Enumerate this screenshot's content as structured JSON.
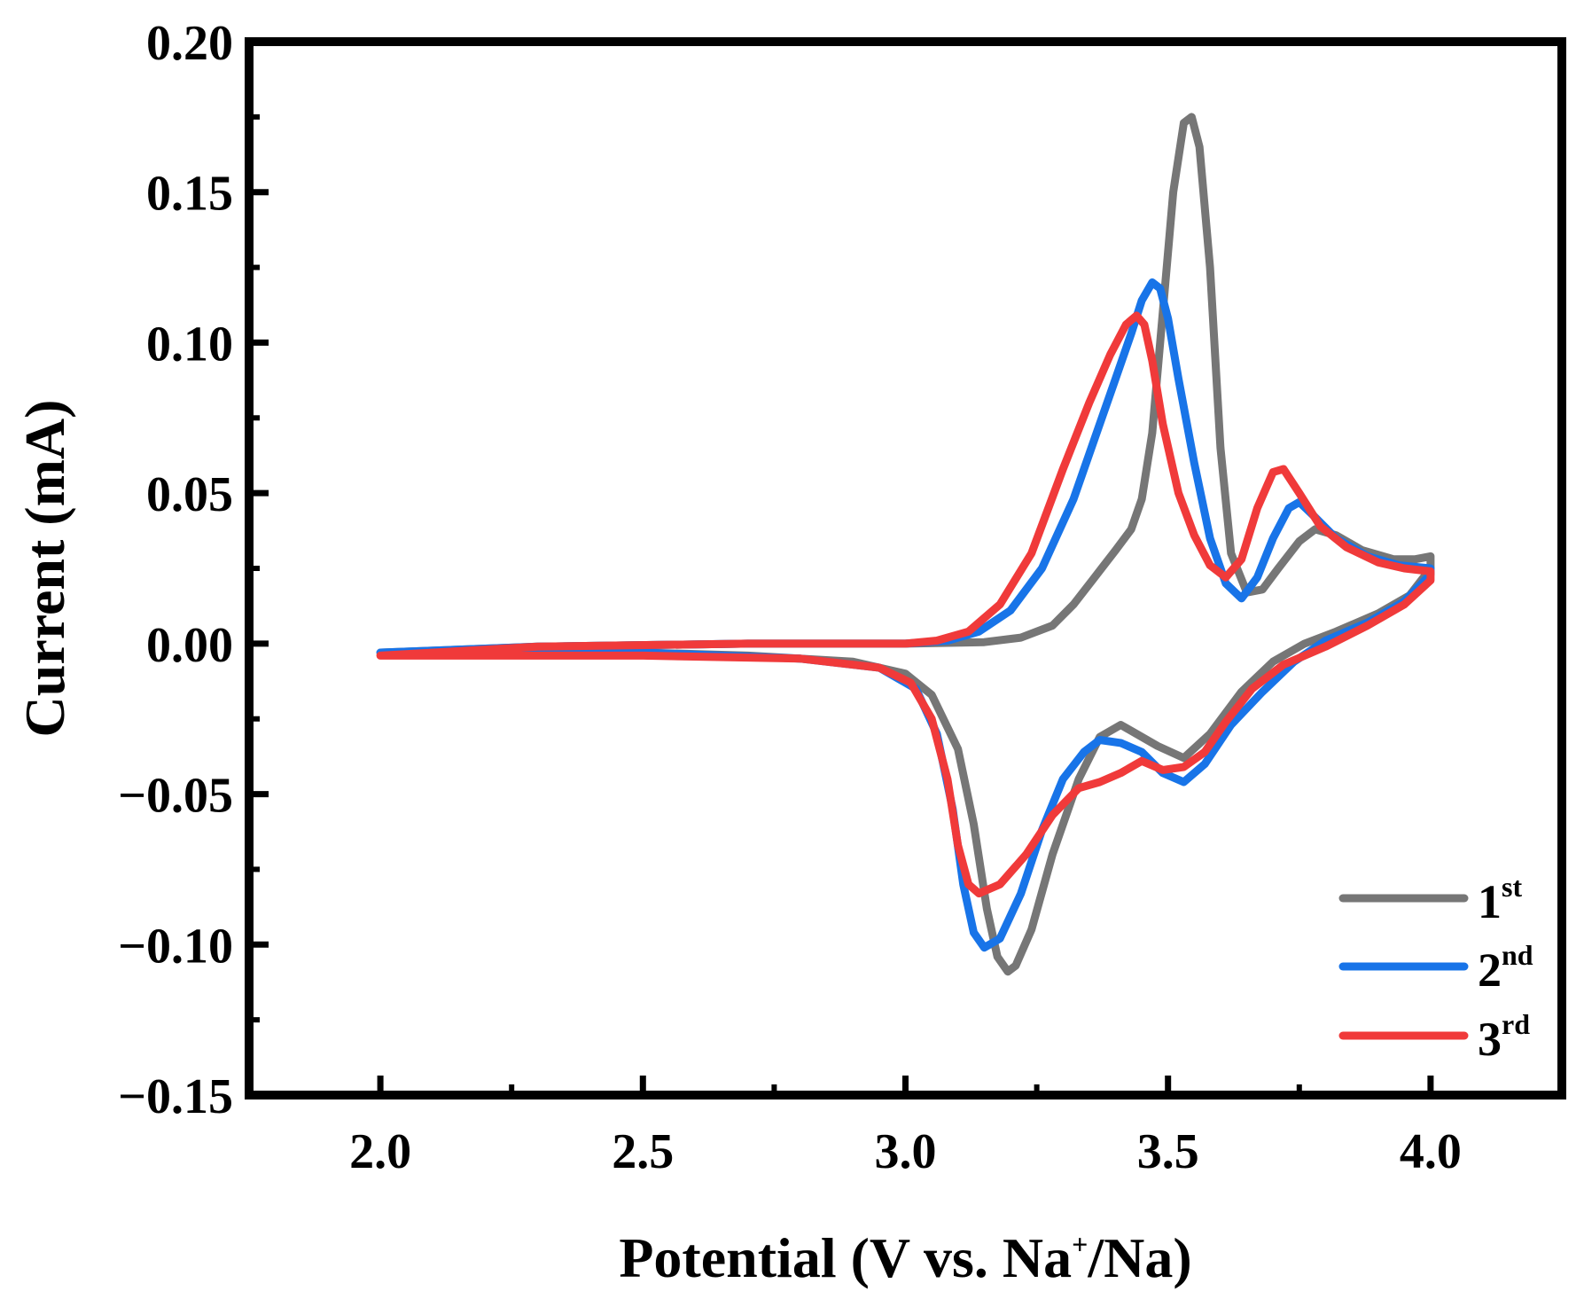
{
  "chart_data": {
    "type": "line",
    "title": "",
    "xlabel": "Potential (V vs. Na",
    "xlabel_sup": "+",
    "xlabel_tail": "/Na)",
    "ylabel": "Current (mA)",
    "xlim": [
      1.75,
      4.25
    ],
    "ylim": [
      -0.15,
      0.2
    ],
    "x_ticks": [
      2.0,
      2.5,
      3.0,
      3.5,
      4.0
    ],
    "x_tick_labels": [
      "2.0",
      "2.5",
      "3.0",
      "3.5",
      "4.0"
    ],
    "y_ticks": [
      -0.15,
      -0.1,
      -0.05,
      0.0,
      0.05,
      0.1,
      0.15,
      0.2
    ],
    "y_tick_labels": [
      "−0.15",
      "−0.10",
      "−0.05",
      "0.00",
      "0.05",
      "0.10",
      "0.15",
      "0.20"
    ],
    "grid": false,
    "legend_position": "bottom-right",
    "series": [
      {
        "name": "1st",
        "name_base": "1",
        "name_sup": "st",
        "color": "#767676",
        "anodic": [
          [
            2.0,
            -0.003
          ],
          [
            2.3,
            -0.001
          ],
          [
            2.7,
            0.0
          ],
          [
            3.0,
            0.0
          ],
          [
            3.15,
            0.0005
          ],
          [
            3.22,
            0.002
          ],
          [
            3.28,
            0.006
          ],
          [
            3.32,
            0.013
          ],
          [
            3.36,
            0.022
          ],
          [
            3.4,
            0.031
          ],
          [
            3.43,
            0.038
          ],
          [
            3.45,
            0.048
          ],
          [
            3.47,
            0.07
          ],
          [
            3.49,
            0.11
          ],
          [
            3.51,
            0.15
          ],
          [
            3.53,
            0.173
          ],
          [
            3.545,
            0.175
          ],
          [
            3.56,
            0.165
          ],
          [
            3.58,
            0.125
          ],
          [
            3.6,
            0.065
          ],
          [
            3.62,
            0.03
          ],
          [
            3.65,
            0.017
          ],
          [
            3.68,
            0.018
          ],
          [
            3.71,
            0.025
          ],
          [
            3.75,
            0.034
          ],
          [
            3.78,
            0.038
          ],
          [
            3.82,
            0.036
          ],
          [
            3.87,
            0.031
          ],
          [
            3.93,
            0.028
          ],
          [
            3.97,
            0.028
          ],
          [
            4.0,
            0.029
          ]
        ],
        "cathodic": [
          [
            4.0,
            0.025
          ],
          [
            3.96,
            0.016
          ],
          [
            3.9,
            0.01
          ],
          [
            3.82,
            0.004
          ],
          [
            3.76,
            0.0
          ],
          [
            3.7,
            -0.006
          ],
          [
            3.64,
            -0.016
          ],
          [
            3.58,
            -0.03
          ],
          [
            3.53,
            -0.038
          ],
          [
            3.48,
            -0.034
          ],
          [
            3.44,
            -0.03
          ],
          [
            3.41,
            -0.027
          ],
          [
            3.37,
            -0.031
          ],
          [
            3.33,
            -0.045
          ],
          [
            3.28,
            -0.07
          ],
          [
            3.24,
            -0.095
          ],
          [
            3.21,
            -0.107
          ],
          [
            3.195,
            -0.109
          ],
          [
            3.175,
            -0.104
          ],
          [
            3.155,
            -0.088
          ],
          [
            3.13,
            -0.06
          ],
          [
            3.1,
            -0.035
          ],
          [
            3.05,
            -0.017
          ],
          [
            3.0,
            -0.01
          ],
          [
            2.9,
            -0.006
          ],
          [
            2.7,
            -0.004
          ],
          [
            2.5,
            -0.003
          ],
          [
            2.2,
            -0.0025
          ],
          [
            2.0,
            -0.003
          ]
        ]
      },
      {
        "name": "2nd",
        "name_base": "2",
        "name_sup": "nd",
        "color": "#1874e8",
        "anodic": [
          [
            2.0,
            -0.003
          ],
          [
            2.3,
            -0.001
          ],
          [
            2.7,
            0.0
          ],
          [
            3.0,
            0.0
          ],
          [
            3.08,
            0.001
          ],
          [
            3.14,
            0.004
          ],
          [
            3.2,
            0.011
          ],
          [
            3.26,
            0.025
          ],
          [
            3.32,
            0.048
          ],
          [
            3.36,
            0.068
          ],
          [
            3.4,
            0.088
          ],
          [
            3.43,
            0.103
          ],
          [
            3.45,
            0.114
          ],
          [
            3.47,
            0.12
          ],
          [
            3.485,
            0.118
          ],
          [
            3.5,
            0.108
          ],
          [
            3.52,
            0.088
          ],
          [
            3.55,
            0.06
          ],
          [
            3.58,
            0.035
          ],
          [
            3.61,
            0.02
          ],
          [
            3.64,
            0.015
          ],
          [
            3.67,
            0.022
          ],
          [
            3.7,
            0.035
          ],
          [
            3.73,
            0.045
          ],
          [
            3.75,
            0.047
          ],
          [
            3.78,
            0.042
          ],
          [
            3.82,
            0.035
          ],
          [
            3.88,
            0.029
          ],
          [
            3.94,
            0.026
          ],
          [
            4.0,
            0.025
          ]
        ],
        "cathodic": [
          [
            4.0,
            0.023
          ],
          [
            3.95,
            0.014
          ],
          [
            3.88,
            0.007
          ],
          [
            3.8,
            0.001
          ],
          [
            3.74,
            -0.006
          ],
          [
            3.68,
            -0.016
          ],
          [
            3.62,
            -0.027
          ],
          [
            3.57,
            -0.04
          ],
          [
            3.53,
            -0.046
          ],
          [
            3.49,
            -0.043
          ],
          [
            3.45,
            -0.036
          ],
          [
            3.41,
            -0.033
          ],
          [
            3.37,
            -0.032
          ],
          [
            3.34,
            -0.036
          ],
          [
            3.3,
            -0.045
          ],
          [
            3.26,
            -0.062
          ],
          [
            3.22,
            -0.083
          ],
          [
            3.18,
            -0.098
          ],
          [
            3.15,
            -0.101
          ],
          [
            3.13,
            -0.096
          ],
          [
            3.11,
            -0.08
          ],
          [
            3.09,
            -0.055
          ],
          [
            3.06,
            -0.03
          ],
          [
            3.02,
            -0.015
          ],
          [
            2.95,
            -0.008
          ],
          [
            2.8,
            -0.005
          ],
          [
            2.5,
            -0.003
          ],
          [
            2.2,
            -0.003
          ],
          [
            2.0,
            -0.003
          ]
        ]
      },
      {
        "name": "3rd",
        "name_base": "3",
        "name_sup": "rd",
        "color": "#f03a3a",
        "anodic": [
          [
            2.0,
            -0.004
          ],
          [
            2.3,
            -0.001
          ],
          [
            2.7,
            0.0
          ],
          [
            3.0,
            0.0
          ],
          [
            3.06,
            0.001
          ],
          [
            3.12,
            0.004
          ],
          [
            3.18,
            0.013
          ],
          [
            3.24,
            0.03
          ],
          [
            3.3,
            0.058
          ],
          [
            3.35,
            0.08
          ],
          [
            3.39,
            0.096
          ],
          [
            3.42,
            0.106
          ],
          [
            3.44,
            0.109
          ],
          [
            3.455,
            0.106
          ],
          [
            3.47,
            0.094
          ],
          [
            3.49,
            0.073
          ],
          [
            3.52,
            0.05
          ],
          [
            3.55,
            0.036
          ],
          [
            3.58,
            0.026
          ],
          [
            3.61,
            0.022
          ],
          [
            3.64,
            0.028
          ],
          [
            3.67,
            0.045
          ],
          [
            3.7,
            0.057
          ],
          [
            3.72,
            0.058
          ],
          [
            3.75,
            0.05
          ],
          [
            3.79,
            0.039
          ],
          [
            3.84,
            0.032
          ],
          [
            3.9,
            0.027
          ],
          [
            3.95,
            0.025
          ],
          [
            4.0,
            0.024
          ]
        ],
        "cathodic": [
          [
            4.0,
            0.021
          ],
          [
            3.95,
            0.013
          ],
          [
            3.88,
            0.006
          ],
          [
            3.8,
            -0.001
          ],
          [
            3.72,
            -0.007
          ],
          [
            3.66,
            -0.015
          ],
          [
            3.61,
            -0.026
          ],
          [
            3.57,
            -0.036
          ],
          [
            3.53,
            -0.041
          ],
          [
            3.49,
            -0.042
          ],
          [
            3.45,
            -0.039
          ],
          [
            3.41,
            -0.043
          ],
          [
            3.37,
            -0.046
          ],
          [
            3.33,
            -0.048
          ],
          [
            3.28,
            -0.057
          ],
          [
            3.23,
            -0.07
          ],
          [
            3.18,
            -0.08
          ],
          [
            3.14,
            -0.083
          ],
          [
            3.12,
            -0.08
          ],
          [
            3.1,
            -0.067
          ],
          [
            3.08,
            -0.045
          ],
          [
            3.05,
            -0.025
          ],
          [
            3.01,
            -0.013
          ],
          [
            2.95,
            -0.008
          ],
          [
            2.8,
            -0.005
          ],
          [
            2.5,
            -0.004
          ],
          [
            2.2,
            -0.004
          ],
          [
            2.0,
            -0.004
          ]
        ]
      }
    ]
  }
}
